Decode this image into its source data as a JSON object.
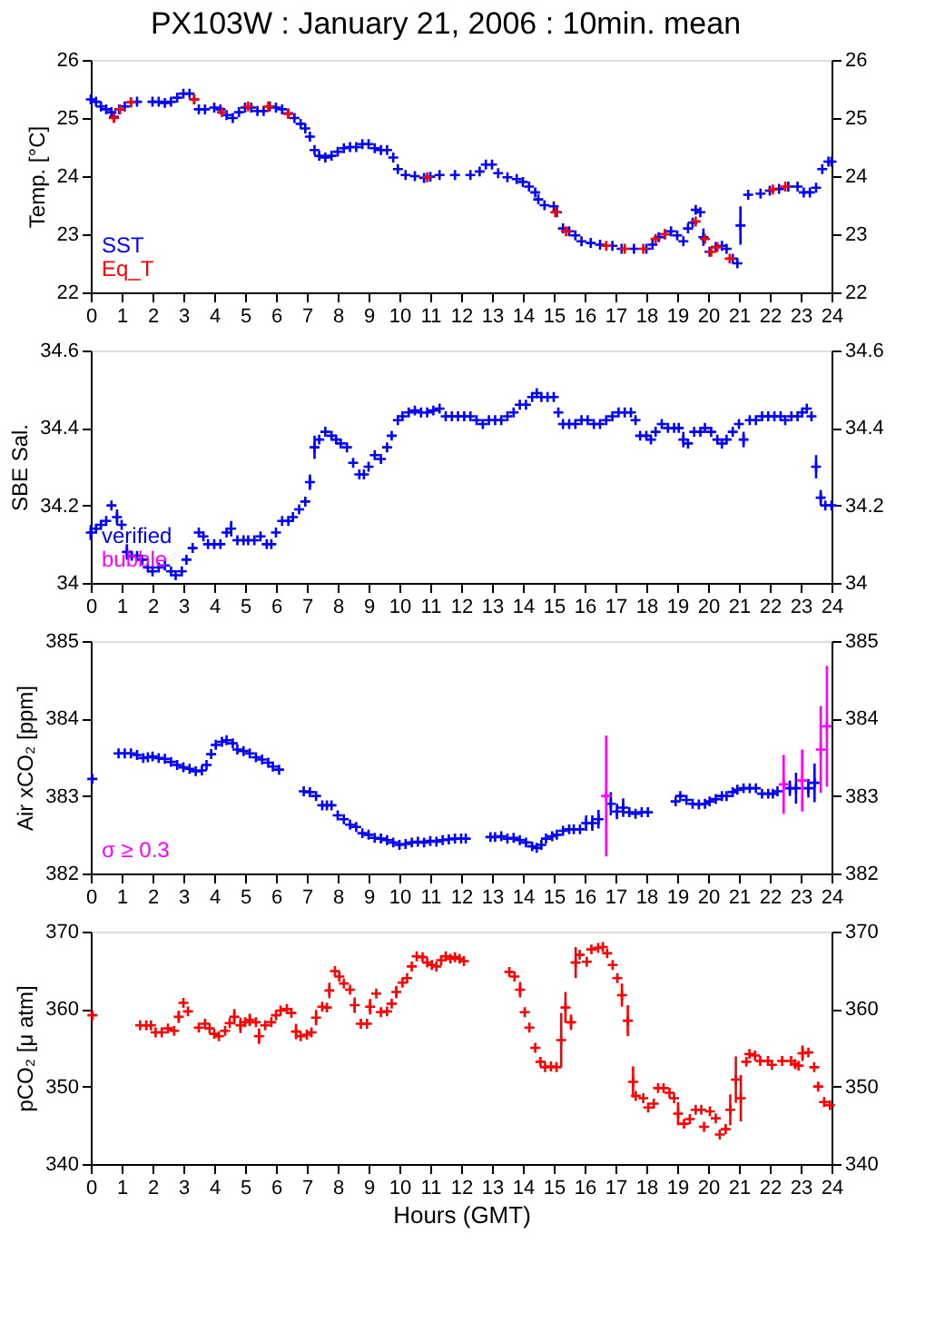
{
  "chart_data": [
    {
      "type": "scatter",
      "title": "PX103W : January 21, 2006 : 10min. mean",
      "ylabel": "Temp. [°C]",
      "xlim": [
        0,
        24
      ],
      "xticks": [
        0,
        1,
        2,
        3,
        4,
        5,
        6,
        7,
        8,
        9,
        10,
        11,
        12,
        13,
        14,
        15,
        16,
        17,
        18,
        19,
        20,
        21,
        22,
        23,
        24
      ],
      "ylim": [
        22,
        26
      ],
      "yticks": [
        22,
        23,
        24,
        25,
        26
      ],
      "y2lim": [
        22,
        26
      ],
      "y2ticks": [
        22,
        23,
        24,
        25,
        26
      ],
      "grid": false,
      "marker": "cross",
      "legend": "bottom left",
      "series": [
        {
          "name": "SST",
          "color": "#0000ff",
          "x": [
            0,
            0.17,
            0.33,
            0.5,
            0.67,
            0.75,
            0.92,
            1.1,
            1.3,
            1.5,
            2,
            2.2,
            2.4,
            2.6,
            2.8,
            3,
            3.2,
            3.35,
            3.5,
            3.7,
            4,
            4.2,
            4.4,
            4.6,
            4.8,
            5,
            5.2,
            5.4,
            5.6,
            5.8,
            6,
            6.2,
            6.4,
            6.6,
            6.8,
            6.95,
            7.1,
            7.25,
            7.4,
            7.6,
            7.8,
            8,
            8.2,
            8.4,
            8.6,
            8.8,
            9,
            9.2,
            9.4,
            9.6,
            9.8,
            9.95,
            10.2,
            10.5,
            10.8,
            11,
            11.3,
            11.8,
            12.3,
            12.6,
            12.8,
            13,
            13.2,
            13.5,
            13.8,
            14,
            14.2,
            14.4,
            14.5,
            14.7,
            15,
            15.1,
            15.3,
            15.5,
            15.7,
            15.9,
            16.2,
            16.5,
            16.9,
            17.2,
            17.6,
            18,
            18.2,
            18.4,
            18.6,
            18.8,
            19,
            19.2,
            19.35,
            19.5,
            19.6,
            19.75,
            19.85,
            20.05,
            20.25,
            20.45,
            20.6,
            20.8,
            20.95,
            21.05,
            21.3,
            21.7,
            22,
            22.3,
            22.6,
            22.9,
            23.1,
            23.3,
            23.5,
            23.7,
            23.9,
            24
          ],
          "values": [
            25.32,
            25.28,
            25.2,
            25.15,
            25.1,
            25.02,
            25.15,
            25.2,
            25.27,
            25.28,
            25.28,
            25.28,
            25.26,
            25.28,
            25.35,
            25.42,
            25.42,
            25.32,
            25.15,
            25.15,
            25.18,
            25.15,
            25.05,
            25.0,
            25.1,
            25.18,
            25.18,
            25.12,
            25.12,
            25.2,
            25.18,
            25.15,
            25.08,
            25.0,
            24.9,
            24.82,
            24.68,
            24.45,
            24.35,
            24.32,
            24.35,
            24.42,
            24.48,
            24.5,
            24.5,
            24.55,
            24.55,
            24.48,
            24.45,
            24.45,
            24.32,
            24.12,
            24.02,
            24.0,
            23.97,
            23.99,
            24.02,
            24.02,
            24.02,
            24.08,
            24.2,
            24.2,
            24.05,
            23.98,
            23.95,
            23.9,
            23.82,
            23.72,
            23.6,
            23.5,
            23.48,
            23.38,
            23.1,
            23.05,
            22.98,
            22.88,
            22.85,
            22.82,
            22.8,
            22.75,
            22.75,
            22.75,
            22.82,
            22.95,
            23.0,
            23.05,
            22.98,
            22.88,
            23.1,
            23.2,
            23.42,
            23.38,
            22.95,
            22.7,
            22.78,
            22.8,
            22.75,
            22.58,
            22.5,
            23.15,
            23.68,
            23.7,
            23.75,
            23.78,
            23.82,
            23.82,
            23.72,
            23.72,
            23.8,
            24.12,
            24.25,
            24.25
          ],
          "errors": [
            null,
            null,
            null,
            null,
            null,
            null,
            null,
            null,
            null,
            null,
            null,
            null,
            null,
            null,
            null,
            null,
            null,
            null,
            null,
            null,
            null,
            null,
            null,
            null,
            null,
            null,
            null,
            null,
            null,
            null,
            null,
            null,
            null,
            null,
            null,
            null,
            null,
            null,
            null,
            null,
            null,
            null,
            null,
            null,
            null,
            null,
            null,
            null,
            null,
            null,
            null,
            null,
            null,
            null,
            null,
            null,
            null,
            null,
            null,
            null,
            null,
            null,
            null,
            null,
            null,
            null,
            null,
            null,
            null,
            null,
            null,
            null,
            null,
            null,
            null,
            null,
            null,
            null,
            null,
            null,
            null,
            null,
            null,
            null,
            null,
            null,
            null,
            null,
            null,
            null,
            null,
            null,
            0.15,
            null,
            null,
            null,
            null,
            null,
            null,
            0.33,
            null,
            null,
            null,
            null,
            null,
            null,
            null,
            null,
            null,
            null,
            null,
            null
          ]
        },
        {
          "name": "Eq_T",
          "color": "#ff0000",
          "x": [
            0.75,
            0.95,
            1.3,
            3.35,
            4.25,
            5.1,
            5.75,
            6.4,
            10.9,
            15.05,
            15.4,
            16.7,
            17.3,
            17.9,
            18.3,
            18.6,
            19.6,
            19.9,
            20.1,
            20.3,
            20.7,
            22.1,
            22.5
          ],
          "values": [
            25.0,
            25.15,
            25.27,
            25.32,
            25.1,
            25.2,
            25.2,
            25.07,
            23.98,
            23.38,
            23.05,
            22.8,
            22.75,
            22.75,
            22.92,
            23.0,
            23.22,
            22.92,
            22.7,
            22.78,
            22.58,
            23.77,
            23.82
          ]
        }
      ]
    },
    {
      "type": "scatter",
      "ylabel": "SBE Sal.",
      "xlim": [
        0,
        24
      ],
      "xticks": [
        0,
        1,
        2,
        3,
        4,
        5,
        6,
        7,
        8,
        9,
        10,
        11,
        12,
        13,
        14,
        15,
        16,
        17,
        18,
        19,
        20,
        21,
        22,
        23,
        24
      ],
      "ylim": [
        34,
        34.6
      ],
      "yticks": [
        {
          "value": 34,
          "label": "34"
        },
        34.2,
        34.4,
        34.6
      ],
      "y2lim": [
        34,
        34.6
      ],
      "y2ticks": [
        {
          "value": 34,
          "label": "34"
        },
        34.2,
        34.4,
        34.6
      ],
      "grid": false,
      "marker": "cross",
      "legend": "bottom left",
      "series": [
        {
          "name": "verified",
          "color": "#0000ff",
          "x": [
            0,
            0.17,
            0.33,
            0.5,
            0.67,
            0.85,
            1,
            1.17,
            1.33,
            1.5,
            1.67,
            1.85,
            2,
            2.2,
            2.4,
            2.6,
            2.75,
            2.95,
            3.1,
            3.3,
            3.5,
            3.65,
            3.8,
            4,
            4.2,
            4.4,
            4.55,
            4.75,
            4.95,
            5.1,
            5.3,
            5.5,
            5.7,
            5.85,
            6,
            6.2,
            6.4,
            6.55,
            6.75,
            6.95,
            7.1,
            7.25,
            7.4,
            7.6,
            7.8,
            7.95,
            8.1,
            8.3,
            8.5,
            8.7,
            8.85,
            9,
            9.2,
            9.4,
            9.6,
            9.75,
            9.95,
            10.1,
            10.3,
            10.5,
            10.7,
            10.9,
            11.1,
            11.3,
            11.5,
            11.7,
            11.9,
            12.1,
            12.3,
            12.5,
            12.7,
            12.9,
            13.1,
            13.3,
            13.5,
            13.7,
            13.9,
            14.1,
            14.3,
            14.45,
            14.6,
            14.8,
            15,
            15.15,
            15.3,
            15.5,
            15.7,
            15.9,
            16.1,
            16.3,
            16.5,
            16.7,
            16.9,
            17.1,
            17.3,
            17.5,
            17.65,
            17.8,
            18,
            18.15,
            18.3,
            18.5,
            18.7,
            18.9,
            19.05,
            19.2,
            19.35,
            19.55,
            19.75,
            19.9,
            20.1,
            20.3,
            20.45,
            20.6,
            20.8,
            21,
            21.15,
            21.35,
            21.55,
            21.75,
            21.95,
            22.15,
            22.35,
            22.5,
            22.7,
            22.9,
            23.05,
            23.2,
            23.35,
            23.5,
            23.65,
            23.8,
            24
          ],
          "values": [
            34.13,
            34.14,
            34.15,
            34.16,
            34.2,
            34.17,
            34.15,
            34.08,
            34.07,
            34.07,
            34.06,
            34.04,
            34.03,
            34.04,
            34.045,
            34.03,
            34.02,
            34.03,
            34.06,
            34.09,
            34.13,
            34.12,
            34.1,
            34.1,
            34.1,
            34.13,
            34.14,
            34.11,
            34.11,
            34.11,
            34.11,
            34.12,
            34.1,
            34.1,
            34.13,
            34.16,
            34.16,
            34.17,
            34.19,
            34.21,
            34.26,
            34.35,
            34.37,
            34.39,
            34.38,
            34.37,
            34.36,
            34.35,
            34.31,
            34.28,
            34.28,
            34.3,
            34.33,
            34.32,
            34.35,
            34.38,
            34.42,
            34.43,
            34.44,
            34.445,
            34.44,
            34.44,
            34.445,
            34.45,
            34.43,
            34.43,
            34.43,
            34.43,
            34.43,
            34.42,
            34.41,
            34.42,
            34.42,
            34.42,
            34.43,
            34.44,
            34.46,
            34.46,
            34.48,
            34.49,
            34.48,
            34.48,
            34.48,
            34.44,
            34.41,
            34.41,
            34.41,
            34.42,
            34.42,
            34.41,
            34.41,
            34.42,
            34.43,
            34.44,
            34.44,
            34.44,
            34.42,
            34.38,
            34.38,
            34.37,
            34.39,
            34.41,
            34.4,
            34.4,
            34.4,
            34.37,
            34.36,
            34.39,
            34.39,
            34.4,
            34.39,
            34.37,
            34.36,
            34.37,
            34.39,
            34.41,
            34.37,
            34.42,
            34.42,
            34.43,
            34.43,
            34.43,
            34.43,
            34.42,
            34.43,
            34.43,
            34.44,
            34.45,
            34.43,
            34.3,
            34.22,
            34.2,
            34.2
          ],
          "errors": [
            0.02,
            null,
            null,
            null,
            null,
            0.02,
            null,
            0.02,
            null,
            null,
            null,
            null,
            null,
            null,
            null,
            null,
            null,
            null,
            null,
            null,
            null,
            null,
            null,
            null,
            null,
            null,
            0.02,
            null,
            null,
            null,
            null,
            null,
            null,
            null,
            null,
            null,
            null,
            null,
            null,
            null,
            0.02,
            0.03,
            null,
            null,
            null,
            null,
            null,
            null,
            null,
            null,
            null,
            null,
            null,
            null,
            null,
            null,
            null,
            null,
            null,
            null,
            null,
            null,
            null,
            null,
            null,
            null,
            null,
            null,
            null,
            null,
            null,
            null,
            null,
            null,
            null,
            null,
            null,
            null,
            null,
            null,
            null,
            null,
            null,
            null,
            null,
            null,
            null,
            null,
            null,
            null,
            null,
            null,
            null,
            null,
            null,
            null,
            null,
            null,
            null,
            null,
            null,
            null,
            null,
            null,
            null,
            0.02,
            null,
            null,
            null,
            null,
            null,
            null,
            null,
            null,
            null,
            null,
            0.02,
            null,
            null,
            null,
            null,
            null,
            null,
            null,
            null,
            null,
            null,
            null,
            null,
            0.03,
            0.02,
            null,
            null
          ]
        },
        {
          "name": "bubble",
          "color": "#ff00ff"
        }
      ]
    },
    {
      "type": "scatter",
      "ylabel": "Air xCO₂ [ppm]",
      "xlim": [
        0,
        24
      ],
      "xticks": [
        0,
        1,
        2,
        3,
        4,
        5,
        6,
        7,
        8,
        9,
        10,
        11,
        12,
        13,
        14,
        15,
        16,
        17,
        18,
        19,
        20,
        21,
        22,
        23,
        24
      ],
      "ylim": [
        382,
        385
      ],
      "yticks": [
        382,
        383,
        384,
        385
      ],
      "y2lim": [
        382,
        385
      ],
      "y2ticks": [
        382,
        383,
        384,
        385
      ],
      "grid": false,
      "marker": "cross",
      "legend": "bottom left",
      "series": [
        {
          "color": "#0000ff",
          "x": [
            0.05,
            0.9,
            1.1,
            1.3,
            1.5,
            1.7,
            1.85,
            2,
            2.2,
            2.4,
            2.6,
            2.8,
            3,
            3.2,
            3.4,
            3.6,
            3.75,
            3.9,
            4.05,
            4.25,
            4.4,
            4.6,
            4.75,
            4.95,
            5.15,
            5.35,
            5.55,
            5.75,
            5.9,
            6.1,
            6.9,
            7.1,
            7.3,
            7.5,
            7.65,
            7.8,
            8,
            8.2,
            8.4,
            8.6,
            8.8,
            9,
            9.2,
            9.4,
            9.6,
            9.8,
            10,
            10.2,
            10.4,
            10.6,
            10.8,
            11,
            11.2,
            11.4,
            11.6,
            11.8,
            12,
            12.15,
            12.95,
            13.1,
            13.3,
            13.5,
            13.7,
            13.9,
            14.1,
            14.3,
            14.45,
            14.6,
            14.75,
            14.95,
            15.1,
            15.3,
            15.5,
            15.65,
            15.85,
            16.05,
            16.25,
            16.45,
            16.85,
            17.05,
            17.25,
            17.45,
            17.65,
            17.85,
            18.05,
            18.95,
            19.1,
            19.3,
            19.5,
            19.7,
            19.9,
            20.05,
            20.25,
            20.45,
            20.6,
            20.8,
            20.95,
            21.15,
            21.35,
            21.55,
            21.75,
            21.95,
            22.1,
            22.25,
            22.65,
            22.85,
            23.25,
            23.45
          ],
          "values": [
            383.22,
            383.55,
            383.55,
            383.55,
            383.53,
            383.49,
            383.5,
            383.51,
            383.49,
            383.48,
            383.44,
            383.4,
            383.37,
            383.35,
            383.32,
            383.33,
            383.4,
            383.54,
            383.66,
            383.7,
            383.72,
            383.68,
            383.6,
            383.58,
            383.55,
            383.5,
            383.47,
            383.43,
            383.38,
            383.34,
            383.06,
            383.05,
            383.0,
            382.88,
            382.88,
            382.88,
            382.75,
            382.7,
            382.63,
            382.6,
            382.52,
            382.5,
            382.46,
            382.45,
            382.43,
            382.4,
            382.37,
            382.38,
            382.4,
            382.41,
            382.4,
            382.42,
            382.41,
            382.43,
            382.44,
            382.45,
            382.45,
            382.45,
            382.47,
            382.47,
            382.48,
            382.45,
            382.46,
            382.43,
            382.4,
            382.35,
            382.33,
            382.37,
            382.45,
            382.48,
            382.5,
            382.55,
            382.57,
            382.57,
            382.57,
            382.65,
            382.65,
            382.7,
            382.9,
            382.8,
            382.85,
            382.79,
            382.77,
            382.79,
            382.79,
            382.93,
            383.0,
            382.95,
            382.9,
            382.89,
            382.9,
            382.93,
            382.96,
            383.0,
            383.0,
            383.05,
            383.08,
            383.1,
            383.1,
            383.1,
            383.03,
            383.03,
            383.03,
            383.06,
            383.1,
            383.1,
            383.1,
            383.17
          ],
          "errors": [
            null,
            null,
            null,
            null,
            null,
            null,
            null,
            null,
            null,
            null,
            null,
            null,
            null,
            null,
            null,
            null,
            null,
            null,
            null,
            null,
            null,
            null,
            null,
            null,
            null,
            null,
            null,
            null,
            null,
            null,
            null,
            null,
            null,
            null,
            null,
            null,
            null,
            null,
            null,
            null,
            null,
            null,
            null,
            null,
            null,
            null,
            null,
            null,
            null,
            null,
            null,
            null,
            null,
            null,
            null,
            null,
            null,
            null,
            null,
            null,
            null,
            null,
            null,
            null,
            null,
            null,
            null,
            null,
            null,
            null,
            null,
            null,
            null,
            null,
            null,
            0.1,
            0.1,
            0.12,
            0.15,
            0.1,
            0.12,
            null,
            null,
            null,
            null,
            null,
            null,
            null,
            null,
            null,
            null,
            null,
            null,
            null,
            null,
            null,
            null,
            null,
            null,
            null,
            null,
            null,
            null,
            null,
            0.1,
            0.2,
            0.12,
            0.25
          ]
        },
        {
          "name": "σ ≥ 0.3",
          "color": "#ff00ff",
          "x": [
            16.7,
            22.45,
            23.05,
            23.65,
            23.85
          ],
          "values": [
            383.0,
            383.15,
            383.2,
            383.6,
            383.9
          ],
          "errors": [
            0.78,
            0.38,
            0.4,
            0.56,
            0.78
          ]
        }
      ]
    },
    {
      "type": "scatter",
      "ylabel": "pCO₂ [μ atm]",
      "xlabel": "Hours (GMT)",
      "xlim": [
        0,
        24
      ],
      "xticks": [
        0,
        1,
        2,
        3,
        4,
        5,
        6,
        7,
        8,
        9,
        10,
        11,
        12,
        13,
        14,
        15,
        16,
        17,
        18,
        19,
        20,
        21,
        22,
        23,
        24
      ],
      "ylim": [
        340,
        370
      ],
      "yticks": [
        340,
        350,
        360,
        370
      ],
      "y2lim": [
        340,
        370
      ],
      "y2ticks": [
        340,
        350,
        360,
        370
      ],
      "grid": false,
      "marker": "cross",
      "series": [
        {
          "color": "#ff0000",
          "x": [
            0.05,
            1.6,
            1.8,
            1.95,
            2.1,
            2.3,
            2.5,
            2.7,
            2.85,
            3.0,
            3.15,
            3.5,
            3.7,
            3.85,
            4.0,
            4.15,
            4.35,
            4.5,
            4.65,
            4.85,
            5.0,
            5.15,
            5.35,
            5.45,
            5.65,
            5.85,
            6.0,
            6.15,
            6.35,
            6.5,
            6.65,
            6.8,
            7.0,
            7.15,
            7.3,
            7.5,
            7.65,
            7.73,
            7.91,
            8.05,
            8.2,
            8.4,
            8.55,
            8.75,
            8.95,
            9.05,
            9.25,
            9.4,
            9.6,
            9.75,
            9.9,
            10.1,
            10.25,
            10.4,
            10.56,
            10.75,
            10.9,
            11.05,
            11.2,
            11.35,
            11.5,
            11.65,
            11.8,
            11.95,
            12.09,
            13.56,
            13.73,
            13.91,
            14.06,
            14.21,
            14.4,
            14.57,
            14.72,
            14.91,
            15.09,
            15.24,
            15.38,
            15.56,
            15.71,
            15.84,
            16.07,
            16.22,
            16.44,
            16.59,
            16.73,
            16.91,
            17.06,
            17.21,
            17.4,
            17.57,
            17.66,
            17.9,
            18.06,
            18.24,
            18.38,
            18.56,
            18.75,
            18.9,
            19.03,
            19.22,
            19.41,
            19.6,
            19.78,
            19.87,
            20.06,
            20.25,
            20.38,
            20.57,
            20.72,
            20.9,
            21.06,
            21.24,
            21.34,
            21.52,
            21.69,
            21.94,
            22.07,
            22.4,
            22.69,
            22.82,
            22.93,
            23.06,
            23.25,
            23.44,
            23.57,
            23.76,
            23.95
          ],
          "values": [
            359.2,
            357.9,
            357.9,
            357.9,
            357.0,
            357.0,
            357.5,
            357.2,
            359.0,
            360.8,
            359.7,
            357.6,
            358.1,
            357.5,
            356.8,
            356.5,
            357.2,
            358.2,
            359.0,
            357.9,
            358.3,
            358.6,
            358.3,
            356.5,
            357.9,
            358.3,
            359.2,
            359.8,
            360.0,
            359.5,
            357.1,
            356.5,
            356.7,
            357.0,
            358.9,
            360.3,
            360.2,
            362.4,
            364.9,
            364.2,
            363.3,
            362.5,
            360.5,
            358.1,
            358.1,
            360.3,
            362.0,
            359.6,
            359.7,
            360.7,
            362.2,
            363.4,
            364.0,
            365.5,
            366.8,
            366.7,
            366.0,
            365.7,
            365.5,
            366.3,
            366.8,
            366.5,
            366.7,
            366.5,
            366.2,
            364.8,
            364.2,
            362.5,
            359.6,
            357.6,
            355.0,
            353.2,
            352.5,
            352.6,
            352.5,
            356.0,
            360.2,
            358.3,
            366.0,
            367.0,
            366.1,
            367.7,
            367.9,
            368.0,
            367.2,
            365.7,
            364.0,
            361.8,
            358.5,
            350.6,
            348.8,
            348.5,
            347.3,
            347.8,
            349.8,
            349.8,
            349.2,
            348.5,
            346.5,
            345.2,
            345.8,
            347.0,
            347.0,
            344.8,
            346.8,
            345.9,
            343.8,
            344.5,
            347.0,
            350.9,
            348.5,
            353.2,
            354.2,
            354.0,
            353.3,
            353.3,
            352.8,
            353.3,
            353.3,
            352.9,
            352.7,
            354.3,
            354.4,
            352.5,
            350.0,
            348.0,
            347.6
          ],
          "errors": [
            null,
            null,
            null,
            null,
            null,
            null,
            null,
            null,
            0.8,
            null,
            null,
            null,
            null,
            null,
            null,
            null,
            null,
            null,
            1,
            1,
            null,
            0.8,
            null,
            1,
            null,
            null,
            null,
            null,
            null,
            null,
            1,
            null,
            null,
            null,
            1,
            null,
            null,
            1,
            null,
            null,
            null,
            null,
            1,
            null,
            null,
            1,
            null,
            null,
            null,
            null,
            0.8,
            null,
            null,
            null,
            null,
            null,
            null,
            null,
            null,
            null,
            null,
            null,
            null,
            null,
            null,
            null,
            null,
            1,
            null,
            null,
            null,
            null,
            null,
            null,
            null,
            3.5,
            2,
            1,
            2,
            null,
            null,
            null,
            null,
            null,
            null,
            null,
            null,
            1.5,
            2,
            2,
            null,
            null,
            null,
            null,
            null,
            null,
            null,
            null,
            1.5,
            null,
            null,
            null,
            null,
            null,
            null,
            null,
            null,
            null,
            2,
            3,
            3,
            null,
            null,
            null,
            null,
            null,
            null,
            null,
            null,
            null,
            null,
            1,
            null,
            null,
            null,
            null,
            null
          ]
        }
      ]
    }
  ]
}
